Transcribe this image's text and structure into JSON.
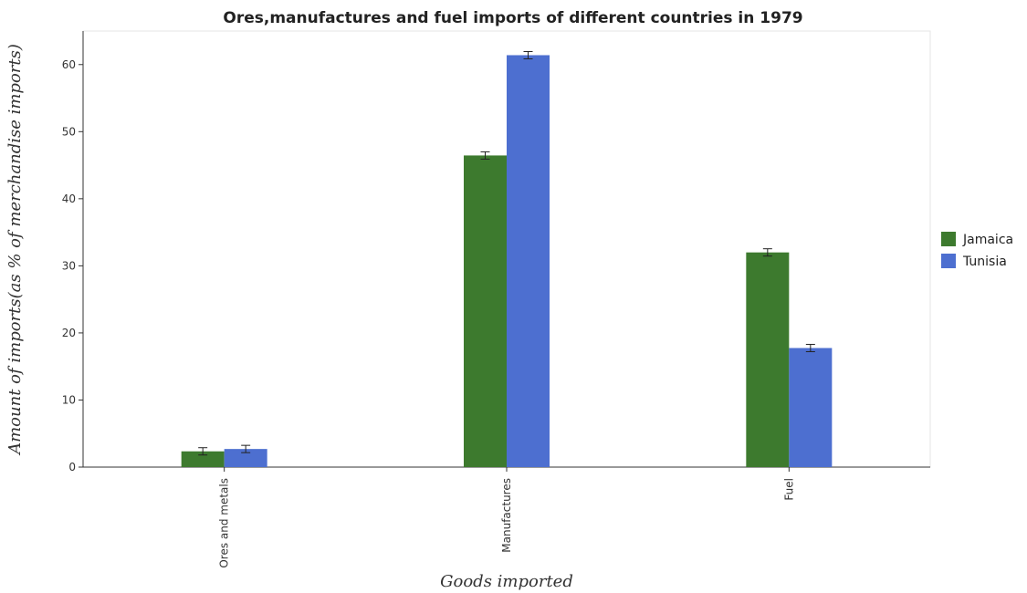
{
  "chart_data": {
    "type": "bar",
    "title": "Ores,manufactures and fuel imports of different countries in 1979",
    "xlabel": "Goods imported",
    "ylabel": "Amount of imports(as % of merchandise imports)",
    "categories": [
      "Ores and metals",
      "Manufactures",
      "Fuel"
    ],
    "series": [
      {
        "name": "Jamaica",
        "color": "#3d7a2e",
        "values": [
          2.35,
          46.45,
          32.0
        ]
      },
      {
        "name": "Tunisia",
        "color": "#4d6fd0",
        "values": [
          2.7,
          61.4,
          17.75
        ]
      }
    ],
    "ylim": [
      0,
      65
    ],
    "yticks": [
      0,
      10,
      20,
      30,
      40,
      50,
      60
    ],
    "grid": false,
    "legend_position": "right"
  }
}
